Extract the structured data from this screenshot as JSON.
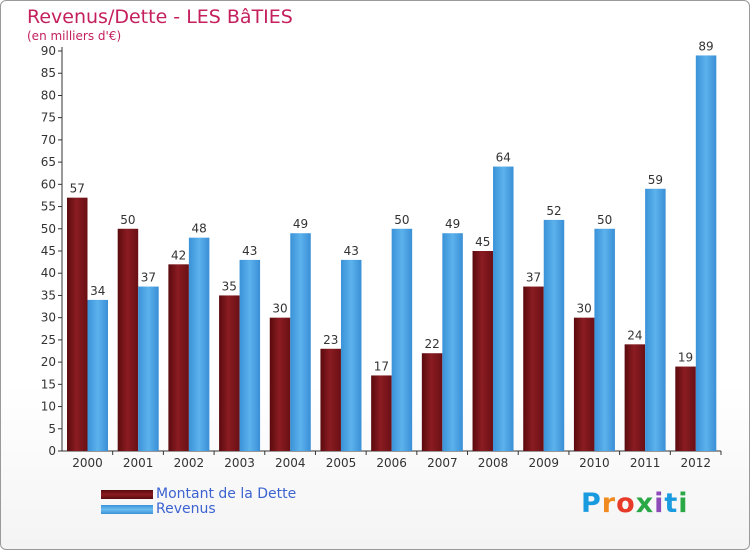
{
  "chart_data": {
    "type": "bar",
    "title": "Revenus/Dette - LES BâTIES",
    "subtitle": "(en milliers d'€)",
    "categories": [
      "2000",
      "2001",
      "2002",
      "2003",
      "2004",
      "2005",
      "2006",
      "2007",
      "2008",
      "2009",
      "2010",
      "2011",
      "2012"
    ],
    "series": [
      {
        "name": "Montant de la Dette",
        "values": [
          57,
          50,
          42,
          35,
          30,
          23,
          17,
          22,
          45,
          37,
          30,
          24,
          19
        ],
        "color": "#7a1419"
      },
      {
        "name": "Revenus",
        "values": [
          34,
          37,
          48,
          43,
          49,
          43,
          50,
          49,
          64,
          52,
          50,
          59,
          89
        ],
        "color": "#3f97dc"
      }
    ],
    "yticks": [
      0,
      5,
      10,
      15,
      20,
      25,
      30,
      35,
      40,
      45,
      50,
      55,
      60,
      65,
      70,
      75,
      80,
      85,
      90
    ],
    "ylim": [
      0,
      90
    ],
    "xlabel": "",
    "ylabel": "",
    "legend_position": "bottom-left",
    "grid": false
  },
  "logo": {
    "text": "Proxiti",
    "colors": [
      "#1a9be0",
      "#f08a1e",
      "#e83a28",
      "#2aa845",
      "#8c4bb8",
      "#1a9be0",
      "#2aa845"
    ]
  }
}
